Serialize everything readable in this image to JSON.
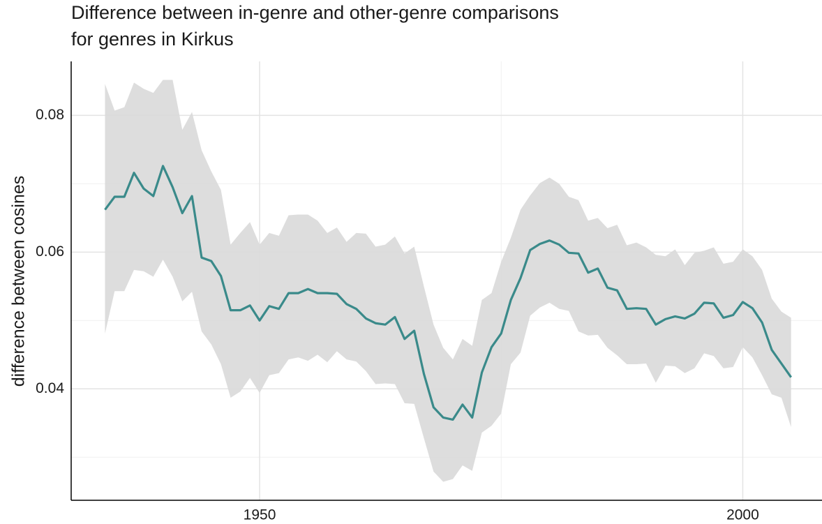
{
  "chart_data": {
    "type": "line",
    "title": [
      "Difference between in-genre and other-genre comparisons",
      "for genres in Kirkus"
    ],
    "y_label": "difference between cosines",
    "x": [
      1934,
      1935,
      1936,
      1937,
      1938,
      1939,
      1940,
      1941,
      1942,
      1943,
      1944,
      1945,
      1946,
      1947,
      1948,
      1949,
      1950,
      1951,
      1952,
      1953,
      1954,
      1955,
      1956,
      1957,
      1958,
      1959,
      1960,
      1961,
      1962,
      1963,
      1964,
      1965,
      1966,
      1967,
      1968,
      1969,
      1970,
      1971,
      1972,
      1973,
      1974,
      1975,
      1976,
      1977,
      1978,
      1979,
      1980,
      1981,
      1982,
      1983,
      1984,
      1985,
      1986,
      1987,
      1988,
      1989,
      1990,
      1991,
      1992,
      1993,
      1994,
      1995,
      1996,
      1997,
      1998,
      1999,
      2000,
      2001,
      2002,
      2003,
      2004,
      2005
    ],
    "values": [
      0.0662,
      0.0681,
      0.0681,
      0.0716,
      0.0693,
      0.0682,
      0.0726,
      0.0695,
      0.0657,
      0.0682,
      0.0592,
      0.0587,
      0.0565,
      0.0515,
      0.0515,
      0.0522,
      0.05,
      0.0521,
      0.0517,
      0.054,
      0.054,
      0.0546,
      0.054,
      0.054,
      0.0539,
      0.0524,
      0.0517,
      0.0503,
      0.0496,
      0.0494,
      0.0505,
      0.0473,
      0.0485,
      0.0422,
      0.0373,
      0.0358,
      0.0355,
      0.0377,
      0.0358,
      0.0424,
      0.0461,
      0.0481,
      0.053,
      0.0562,
      0.0603,
      0.0612,
      0.0617,
      0.0611,
      0.0599,
      0.0598,
      0.057,
      0.0576,
      0.0548,
      0.0544,
      0.0517,
      0.0518,
      0.0517,
      0.0494,
      0.0502,
      0.0506,
      0.0503,
      0.051,
      0.0526,
      0.0525,
      0.0504,
      0.0508,
      0.0527,
      0.0518,
      0.0497,
      0.0457,
      0.0437,
      0.0417
    ],
    "color": "#3a8a8a",
    "band": {
      "color": "#d9d9d9",
      "upper": [
        0.0846,
        0.0807,
        0.0812,
        0.0848,
        0.0839,
        0.0833,
        0.0852,
        0.0852,
        0.0779,
        0.0805,
        0.0749,
        0.0718,
        0.0691,
        0.0611,
        0.0628,
        0.0644,
        0.0611,
        0.0628,
        0.0624,
        0.0654,
        0.0655,
        0.0655,
        0.0646,
        0.0628,
        0.0636,
        0.0615,
        0.0628,
        0.0627,
        0.0608,
        0.0611,
        0.0623,
        0.0598,
        0.0608,
        0.055,
        0.0494,
        0.046,
        0.0443,
        0.0473,
        0.0463,
        0.053,
        0.054,
        0.0586,
        0.0621,
        0.0662,
        0.0683,
        0.0701,
        0.0709,
        0.07,
        0.0681,
        0.0676,
        0.0646,
        0.065,
        0.0635,
        0.064,
        0.061,
        0.0614,
        0.0607,
        0.0596,
        0.0594,
        0.0604,
        0.0581,
        0.0599,
        0.0602,
        0.0607,
        0.0583,
        0.0586,
        0.0604,
        0.0594,
        0.0574,
        0.0532,
        0.0513,
        0.0504
      ],
      "lower": [
        0.0481,
        0.0543,
        0.0543,
        0.0574,
        0.0572,
        0.0564,
        0.0589,
        0.0564,
        0.0528,
        0.0542,
        0.0484,
        0.0465,
        0.0436,
        0.0387,
        0.0396,
        0.0416,
        0.0394,
        0.042,
        0.0423,
        0.0443,
        0.0446,
        0.0441,
        0.045,
        0.0439,
        0.0455,
        0.0443,
        0.044,
        0.0426,
        0.0407,
        0.0408,
        0.0407,
        0.0379,
        0.0378,
        0.0328,
        0.0279,
        0.0264,
        0.0268,
        0.0288,
        0.028,
        0.0336,
        0.0346,
        0.0364,
        0.0436,
        0.0453,
        0.0507,
        0.0519,
        0.0526,
        0.0517,
        0.0514,
        0.0484,
        0.0478,
        0.0479,
        0.046,
        0.0449,
        0.0436,
        0.0436,
        0.0437,
        0.0409,
        0.0434,
        0.0433,
        0.0423,
        0.043,
        0.0452,
        0.0448,
        0.043,
        0.0432,
        0.0461,
        0.0446,
        0.042,
        0.0392,
        0.0387,
        0.0344
      ]
    },
    "xlim": [
      1930.5,
      2008.2
    ],
    "ylim": [
      0.0237,
      0.0879
    ],
    "xticks": [
      1950,
      2000
    ],
    "yticks": [
      0.04,
      0.06,
      0.08
    ],
    "minor_xticks": [
      1975
    ],
    "minor_yticks": [
      0.03,
      0.05,
      0.07
    ],
    "grid": true
  }
}
